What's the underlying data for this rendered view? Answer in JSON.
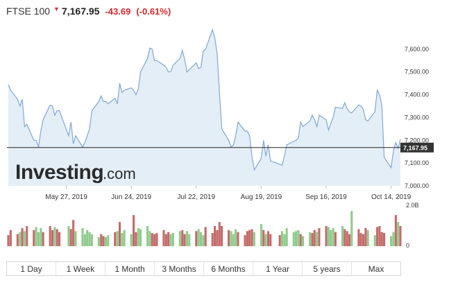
{
  "header": {
    "name": "FTSE 100",
    "arrow": "▼",
    "price": "7,167.95",
    "change": "-43.69",
    "percent": "(-0.61%)"
  },
  "colors": {
    "line": "#7fa7d6",
    "area": "#e4eef7",
    "up_volume": "#8fcb8c",
    "down_volume": "#c46a6a",
    "current_line": "#222222",
    "current_label_bg": "#333333",
    "change_red": "#d9262b"
  },
  "chart_data": [
    {
      "type": "area",
      "x": [
        "2019-05-02",
        "2019-05-03",
        "2019-05-06",
        "2019-05-07",
        "2019-05-08",
        "2019-05-09",
        "2019-05-10",
        "2019-05-13",
        "2019-05-14",
        "2019-05-15",
        "2019-05-16",
        "2019-05-17",
        "2019-05-20",
        "2019-05-21",
        "2019-05-22",
        "2019-05-23",
        "2019-05-24",
        "2019-05-28",
        "2019-05-29",
        "2019-05-30",
        "2019-05-31",
        "2019-06-03",
        "2019-06-04",
        "2019-06-05",
        "2019-06-06",
        "2019-06-07",
        "2019-06-10",
        "2019-06-11",
        "2019-06-12",
        "2019-06-13",
        "2019-06-14",
        "2019-06-17",
        "2019-06-18",
        "2019-06-19",
        "2019-06-20",
        "2019-06-21",
        "2019-06-24",
        "2019-06-25",
        "2019-06-26",
        "2019-06-27",
        "2019-06-28",
        "2019-07-01",
        "2019-07-02",
        "2019-07-03",
        "2019-07-04",
        "2019-07-05",
        "2019-07-08",
        "2019-07-09",
        "2019-07-10",
        "2019-07-11",
        "2019-07-12",
        "2019-07-15",
        "2019-07-16",
        "2019-07-17",
        "2019-07-18",
        "2019-07-19",
        "2019-07-22",
        "2019-07-23",
        "2019-07-24",
        "2019-07-25",
        "2019-07-26",
        "2019-07-29",
        "2019-07-30",
        "2019-07-31",
        "2019-08-01",
        "2019-08-02",
        "2019-08-05",
        "2019-08-06",
        "2019-08-07",
        "2019-08-08",
        "2019-08-09",
        "2019-08-12",
        "2019-08-13",
        "2019-08-14",
        "2019-08-15",
        "2019-08-16",
        "2019-08-19",
        "2019-08-20",
        "2019-08-21",
        "2019-08-22",
        "2019-08-23",
        "2019-08-27",
        "2019-08-28",
        "2019-08-29",
        "2019-08-30",
        "2019-09-02",
        "2019-09-03",
        "2019-09-04",
        "2019-09-05",
        "2019-09-06",
        "2019-09-09",
        "2019-09-10",
        "2019-09-11",
        "2019-09-12",
        "2019-09-13",
        "2019-09-16",
        "2019-09-17",
        "2019-09-18",
        "2019-09-19",
        "2019-09-20",
        "2019-09-23",
        "2019-09-24",
        "2019-09-25",
        "2019-09-26",
        "2019-09-27",
        "2019-09-30",
        "2019-10-01",
        "2019-10-02",
        "2019-10-03",
        "2019-10-04",
        "2019-10-07",
        "2019-10-08",
        "2019-10-09",
        "2019-10-10",
        "2019-10-11",
        "2019-10-14",
        "2019-10-15",
        "2019-10-16",
        "2019-10-17",
        "2019-10-18"
      ],
      "y": [
        7445,
        7420,
        7380,
        7350,
        7380,
        7260,
        7270,
        7200,
        7200,
        7170,
        7240,
        7290,
        7355,
        7350,
        7310,
        7330,
        7330,
        7220,
        7280,
        7185,
        7220,
        7170,
        7190,
        7220,
        7250,
        7330,
        7370,
        7395,
        7370,
        7370,
        7360,
        7385,
        7360,
        7450,
        7410,
        7420,
        7430,
        7420,
        7400,
        7425,
        7500,
        7560,
        7605,
        7600,
        7550,
        7550,
        7530,
        7520,
        7500,
        7500,
        7530,
        7560,
        7595,
        7555,
        7500,
        7510,
        7540,
        7515,
        7520,
        7590,
        7600,
        7685,
        7650,
        7580,
        7410,
        7250,
        7200,
        7170,
        7180,
        7220,
        7280,
        7240,
        7240,
        7220,
        7130,
        7070,
        7120,
        7200,
        7130,
        7180,
        7110,
        7095,
        7090,
        7130,
        7180,
        7195,
        7200,
        7210,
        7280,
        7260,
        7285,
        7310,
        7290,
        7260,
        7310,
        7290,
        7245,
        7275,
        7300,
        7345,
        7340,
        7365,
        7340,
        7325,
        7320,
        7355,
        7350,
        7335,
        7290,
        7285,
        7325,
        7420,
        7400,
        7350,
        7125,
        7080,
        7155,
        7190,
        7165,
        7205
      ],
      "current_value": 7167.95,
      "current_label": "7,167.95",
      "ylim": [
        7000,
        7700
      ],
      "y_ticks": [
        "7,000.00",
        "7,100.00",
        "7,200.00",
        "7,300.00",
        "7,400.00",
        "7,500.00",
        "7,600.00"
      ],
      "x_ticks": [
        "May 27, 2019",
        "Jun 24, 2019",
        "Jul 22, 2019",
        "Aug 19, 2019",
        "Sep 16, 2019",
        "Oct 14, 2019"
      ],
      "grid": "off",
      "watermark": "Investing.com"
    },
    {
      "type": "bar",
      "volume": [
        0.55,
        0.8,
        0.6,
        0.7,
        0.9,
        0.75,
        1.0,
        0.8,
        0.95,
        0.7,
        0.9,
        0.7,
        1.0,
        0.8,
        0.95,
        0.85,
        0.7,
        1.0,
        0.85,
        1.3,
        0.75,
        0.9,
        0.6,
        0.8,
        0.7,
        0.6,
        0.45,
        0.6,
        0.5,
        0.45,
        0.55,
        0.7,
        0.75,
        1.2,
        0.65,
        0.8,
        0.6,
        1.55,
        0.7,
        0.9,
        0.85,
        1.0,
        0.75,
        0.65,
        0.6,
        0.65,
        0.8,
        0.6,
        0.7,
        0.6,
        0.65,
        0.75,
        0.8,
        0.6,
        0.75,
        0.6,
        0.75,
        0.85,
        0.7,
        0.55,
        0.95,
        0.65,
        1.0,
        0.8,
        1.2,
        1.0,
        0.8,
        0.75,
        0.6,
        0.85,
        0.7,
        0.55,
        0.75,
        0.8,
        0.85,
        0.7,
        1.1,
        0.8,
        0.6,
        0.75,
        0.6,
        0.55,
        0.75,
        0.6,
        0.9,
        0.7,
        0.75,
        0.8,
        0.6,
        0.5,
        0.7,
        0.65,
        0.8,
        0.7,
        0.9,
        1.0,
        0.95,
        0.8,
        0.9,
        0.7,
        1.0,
        0.85,
        0.75,
        0.6,
        1.75,
        0.85,
        0.65,
        0.6,
        0.9,
        0.8,
        0.55,
        0.95,
        1.0,
        0.7,
        0.65,
        0.5,
        0.7,
        1.55,
        1.2,
        1.0
      ],
      "up": [
        false,
        false,
        false,
        true,
        false,
        true,
        false,
        false,
        true,
        true,
        true,
        false,
        false,
        false,
        true,
        false,
        false,
        true,
        false,
        false,
        true,
        true,
        true,
        true,
        true,
        true,
        true,
        false,
        false,
        true,
        true,
        false,
        true,
        false,
        true,
        true,
        true,
        false,
        false,
        true,
        true,
        true,
        true,
        false,
        false,
        false,
        false,
        false,
        false,
        true,
        true,
        true,
        false,
        false,
        true,
        true,
        false,
        true,
        true,
        true,
        false,
        false,
        false,
        false,
        false,
        false,
        false,
        true,
        true,
        true,
        false,
        false,
        false,
        false,
        false,
        true,
        true,
        false,
        true,
        false,
        false,
        false,
        true,
        true,
        true,
        true,
        true,
        true,
        false,
        true,
        true,
        false,
        false,
        true,
        false,
        false,
        true,
        true,
        true,
        false,
        true,
        false,
        false,
        false,
        true,
        false,
        false,
        false,
        false,
        true,
        true,
        false,
        false,
        false,
        false,
        true,
        true,
        false,
        true,
        false
      ],
      "y_ticks": [
        "0",
        "2.0B"
      ]
    }
  ],
  "tabs": [
    "1 Day",
    "1 Week",
    "1 Month",
    "3 Months",
    "6 Months",
    "1 Year",
    "5 years",
    "Max"
  ]
}
